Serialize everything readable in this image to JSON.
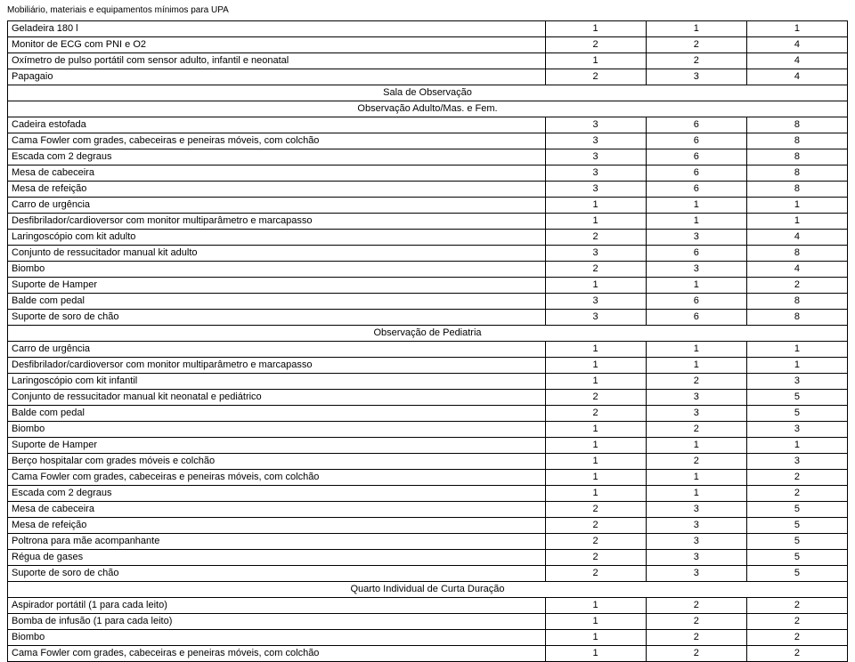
{
  "title": "Mobiliário, materiais e equipamentos mínimos para UPA",
  "columns": [
    "c0",
    "c1",
    "c2",
    "c3"
  ],
  "rows": [
    {
      "t": "data",
      "cells": [
        "Geladeira 180 l",
        "1",
        "1",
        "1"
      ]
    },
    {
      "t": "data",
      "cells": [
        "Monitor de ECG com PNI e O2",
        "2",
        "2",
        "4"
      ]
    },
    {
      "t": "data",
      "cells": [
        "Oxímetro de pulso portátil com sensor adulto, infantil e neonatal",
        "1",
        "2",
        "4"
      ]
    },
    {
      "t": "data",
      "cells": [
        "Papagaio",
        "2",
        "3",
        "4"
      ]
    },
    {
      "t": "section",
      "label": "Sala de Observação"
    },
    {
      "t": "section",
      "label": "Observação Adulto/Mas. e Fem."
    },
    {
      "t": "data",
      "cells": [
        "Cadeira estofada",
        "3",
        "6",
        "8"
      ]
    },
    {
      "t": "data",
      "cells": [
        "Cama Fowler com grades, cabeceiras e peneiras móveis, com colchão",
        "3",
        "6",
        "8"
      ]
    },
    {
      "t": "data",
      "cells": [
        "Escada com 2 degraus",
        "3",
        "6",
        "8"
      ]
    },
    {
      "t": "data",
      "cells": [
        "Mesa de cabeceira",
        "3",
        "6",
        "8"
      ]
    },
    {
      "t": "data",
      "cells": [
        "Mesa de refeição",
        "3",
        "6",
        "8"
      ]
    },
    {
      "t": "data",
      "cells": [
        "Carro de urgência",
        "1",
        "1",
        "1"
      ]
    },
    {
      "t": "data",
      "cells": [
        "Desfibrilador/cardioversor com monitor multiparâmetro e marcapasso",
        "1",
        "1",
        "1"
      ]
    },
    {
      "t": "data",
      "cells": [
        "Laringoscópio com kit adulto",
        "2",
        "3",
        "4"
      ]
    },
    {
      "t": "data",
      "cells": [
        "Conjunto de ressucitador manual kit adulto",
        "3",
        "6",
        "8"
      ]
    },
    {
      "t": "data",
      "cells": [
        "Biombo",
        "2",
        "3",
        "4"
      ]
    },
    {
      "t": "data",
      "cells": [
        "Suporte de Hamper",
        "1",
        "1",
        "2"
      ]
    },
    {
      "t": "data",
      "cells": [
        "Balde com pedal",
        "3",
        "6",
        "8"
      ]
    },
    {
      "t": "data",
      "cells": [
        "Suporte de soro de chão",
        "3",
        "6",
        "8"
      ]
    },
    {
      "t": "section",
      "label": "Observação de Pediatria"
    },
    {
      "t": "data",
      "cells": [
        "Carro de urgência",
        "1",
        "1",
        "1"
      ]
    },
    {
      "t": "data",
      "cells": [
        "Desfibrilador/cardioversor com monitor multiparâmetro e marcapasso",
        "1",
        "1",
        "1"
      ]
    },
    {
      "t": "data",
      "cells": [
        "Laringoscópio com kit infantil",
        "1",
        "2",
        "3"
      ]
    },
    {
      "t": "data",
      "cells": [
        "Conjunto de ressucitador manual kit neonatal e pediátrico",
        "2",
        "3",
        "5"
      ]
    },
    {
      "t": "data",
      "cells": [
        "Balde com pedal",
        "2",
        "3",
        "5"
      ]
    },
    {
      "t": "data",
      "cells": [
        "Biombo",
        "1",
        "2",
        "3"
      ]
    },
    {
      "t": "data",
      "cells": [
        "Suporte de Hamper",
        "1",
        "1",
        "1"
      ]
    },
    {
      "t": "data",
      "cells": [
        "Berço hospitalar com grades móveis e colchão",
        "1",
        "2",
        "3"
      ]
    },
    {
      "t": "data",
      "cells": [
        "Cama Fowler com grades, cabeceiras e peneiras móveis, com colchão",
        "1",
        "1",
        "2"
      ]
    },
    {
      "t": "data",
      "cells": [
        "Escada com 2 degraus",
        "1",
        "1",
        "2"
      ]
    },
    {
      "t": "data",
      "cells": [
        "Mesa de cabeceira",
        "2",
        "3",
        "5"
      ]
    },
    {
      "t": "data",
      "cells": [
        "Mesa de refeição",
        "2",
        "3",
        "5"
      ]
    },
    {
      "t": "data",
      "cells": [
        "Poltrona para mãe acompanhante",
        "2",
        "3",
        "5"
      ]
    },
    {
      "t": "data",
      "cells": [
        "Régua de gases",
        "2",
        "3",
        "5"
      ]
    },
    {
      "t": "data",
      "cells": [
        "Suporte de soro de chão",
        "2",
        "3",
        "5"
      ]
    },
    {
      "t": "section",
      "label": "Quarto Individual de Curta Duração"
    },
    {
      "t": "data",
      "cells": [
        "Aspirador portátil (1 para cada leito)",
        "1",
        "2",
        "2"
      ]
    },
    {
      "t": "data",
      "cells": [
        "Bomba de infusão (1 para cada leito)",
        "1",
        "2",
        "2"
      ]
    },
    {
      "t": "data",
      "cells": [
        "Biombo",
        "1",
        "2",
        "2"
      ]
    },
    {
      "t": "data",
      "cells": [
        "Cama Fowler com grades, cabeceiras e peneiras móveis, com colchão",
        "1",
        "2",
        "2"
      ]
    }
  ]
}
